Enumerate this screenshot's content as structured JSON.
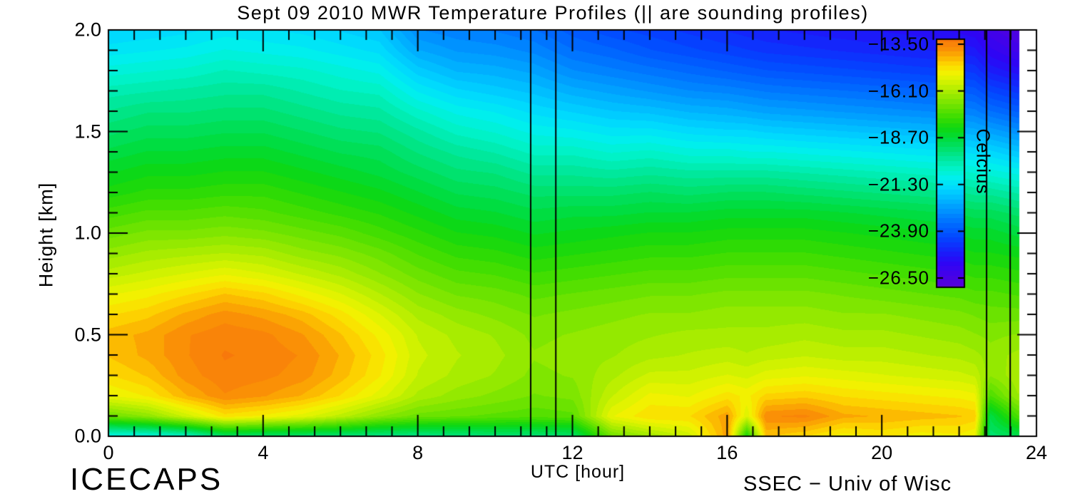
{
  "title": "Sept 09 2010 MWR Temperature Profiles (|| are sounding profiles)",
  "axes": {
    "xlabel": "UTC [hour]",
    "ylabel": "Height [km]",
    "x_tick_labels": [
      "0",
      "4",
      "8",
      "12",
      "16",
      "20",
      "24"
    ],
    "x_tick_values": [
      0,
      4,
      8,
      12,
      16,
      20,
      24
    ],
    "y_tick_labels": [
      "0.0",
      "0.5",
      "1.0",
      "1.5",
      "2.0"
    ],
    "y_tick_values": [
      0,
      0.5,
      1,
      1.5,
      2
    ]
  },
  "colorbar": {
    "title": "Celcius",
    "tick_labels": [
      "−13.50",
      "−16.10",
      "−18.70",
      "−21.30",
      "−23.90",
      "−26.50"
    ],
    "tick_values": [
      -13.5,
      -16.1,
      -18.7,
      -21.3,
      -23.9,
      -26.5
    ],
    "min": -26.5,
    "max": -13.5
  },
  "footer": {
    "left": "ICECAPS",
    "right": "SSEC − Univ of Wisc"
  },
  "chart_data": {
    "type": "heatmap",
    "title": "Sept 09 2010 MWR Temperature Profiles (|| are sounding profiles)",
    "xlabel": "UTC [hour]",
    "ylabel": "Height [km]",
    "value_label": "Temperature (Celcius)",
    "xlim": [
      0,
      24
    ],
    "ylim": [
      0,
      2
    ],
    "grid": false,
    "value_range": [
      -26.5,
      -13.5
    ],
    "level_step_c": 0.25,
    "data_end_hour": 23.55,
    "sounding_lines_utc": [
      10.92,
      11.57,
      22.71,
      23.32
    ],
    "x_hours": [
      0,
      1,
      2,
      3,
      4,
      5,
      6,
      7,
      8,
      9,
      10,
      11,
      12,
      13,
      14,
      15,
      16,
      16.5,
      17,
      18,
      19,
      20,
      21,
      22,
      22.4,
      22.8,
      23.5
    ],
    "heights_km": [
      0,
      0.1,
      0.2,
      0.3,
      0.4,
      0.5,
      0.6,
      0.7,
      0.8,
      0.9,
      1.0,
      1.1,
      1.2,
      1.3,
      1.4,
      1.5,
      1.6,
      1.7,
      1.8,
      1.9,
      2.0
    ],
    "temps_c": [
      [
        -20.8,
        -17.0,
        -15.4,
        -14.9,
        -14.6,
        -14.5,
        -14.9,
        -15.4,
        -16.0,
        -16.5,
        -17.0,
        -17.5,
        -18.0,
        -18.4,
        -18.8,
        -19.2,
        -19.6,
        -20.0,
        -20.5,
        -21.0,
        -21.4
      ],
      [
        -20.7,
        -16.6,
        -15.1,
        -14.6,
        -14.3,
        -14.3,
        -14.7,
        -15.2,
        -15.8,
        -16.3,
        -16.8,
        -17.3,
        -17.8,
        -18.2,
        -18.6,
        -19.0,
        -19.4,
        -19.9,
        -20.4,
        -20.9,
        -21.3
      ],
      [
        -20.4,
        -15.8,
        -14.4,
        -14.0,
        -13.9,
        -13.9,
        -14.3,
        -14.9,
        -15.6,
        -16.2,
        -16.8,
        -17.3,
        -17.8,
        -18.2,
        -18.6,
        -19.0,
        -19.4,
        -19.8,
        -20.3,
        -20.8,
        -21.2
      ],
      [
        -19.3,
        -15.0,
        -13.9,
        -13.7,
        -13.6,
        -13.7,
        -14.0,
        -14.6,
        -15.4,
        -16.1,
        -16.7,
        -17.2,
        -17.7,
        -18.1,
        -18.5,
        -18.9,
        -19.3,
        -19.7,
        -20.1,
        -20.6,
        -21.0
      ],
      [
        -19.4,
        -15.2,
        -14.1,
        -13.8,
        -13.7,
        -13.8,
        -14.2,
        -14.8,
        -15.6,
        -16.2,
        -16.8,
        -17.3,
        -17.7,
        -18.1,
        -18.5,
        -18.9,
        -19.3,
        -19.7,
        -20.2,
        -20.7,
        -21.1
      ],
      [
        -19.4,
        -15.5,
        -14.4,
        -14.0,
        -13.9,
        -14.1,
        -14.5,
        -15.2,
        -15.9,
        -16.5,
        -17.0,
        -17.5,
        -17.9,
        -18.3,
        -18.7,
        -19.1,
        -19.5,
        -19.9,
        -20.3,
        -20.8,
        -21.2
      ],
      [
        -19.5,
        -16.0,
        -14.9,
        -14.5,
        -14.4,
        -14.6,
        -15.0,
        -15.6,
        -16.2,
        -16.7,
        -17.2,
        -17.7,
        -18.1,
        -18.5,
        -18.9,
        -19.3,
        -19.7,
        -20.1,
        -20.5,
        -21.0,
        -21.4
      ],
      [
        -19.6,
        -16.6,
        -15.5,
        -15.1,
        -15.0,
        -15.2,
        -15.6,
        -16.1,
        -16.6,
        -17.0,
        -17.5,
        -17.9,
        -18.3,
        -18.7,
        -19.0,
        -19.4,
        -19.8,
        -20.2,
        -20.7,
        -21.2,
        -21.6
      ],
      [
        -19.6,
        -17.0,
        -16.2,
        -15.9,
        -15.8,
        -15.9,
        -16.2,
        -16.6,
        -17.0,
        -17.4,
        -17.8,
        -18.2,
        -18.6,
        -19.0,
        -19.4,
        -19.8,
        -20.3,
        -20.9,
        -21.5,
        -22.1,
        -22.6
      ],
      [
        -19.5,
        -17.1,
        -16.5,
        -16.2,
        -16.1,
        -16.2,
        -16.5,
        -16.9,
        -17.3,
        -17.7,
        -18.1,
        -18.5,
        -18.9,
        -19.3,
        -19.7,
        -20.2,
        -20.7,
        -21.3,
        -21.9,
        -22.4,
        -22.8
      ],
      [
        -19.4,
        -17.2,
        -16.7,
        -16.4,
        -16.3,
        -16.4,
        -16.7,
        -17.0,
        -17.4,
        -17.8,
        -18.2,
        -18.6,
        -19.0,
        -19.4,
        -19.9,
        -20.4,
        -20.9,
        -21.5,
        -22.0,
        -22.5,
        -22.9
      ],
      [
        -19.4,
        -17.3,
        -16.9,
        -16.7,
        -16.6,
        -16.7,
        -16.9,
        -17.2,
        -17.6,
        -18.0,
        -18.4,
        -18.8,
        -19.2,
        -19.7,
        -20.2,
        -20.7,
        -21.2,
        -21.7,
        -22.2,
        -22.7,
        -23.1
      ],
      [
        -19.3,
        -17.2,
        -16.8,
        -16.6,
        -16.5,
        -16.6,
        -16.8,
        -17.1,
        -17.5,
        -17.9,
        -18.3,
        -18.7,
        -19.2,
        -19.7,
        -20.2,
        -20.8,
        -21.4,
        -22.0,
        -22.6,
        -23.1,
        -23.5
      ],
      [
        -17.0,
        -15.4,
        -15.9,
        -16.2,
        -16.4,
        -16.5,
        -16.7,
        -17.0,
        -17.4,
        -17.8,
        -18.2,
        -18.7,
        -19.2,
        -19.8,
        -20.4,
        -21.0,
        -21.6,
        -22.2,
        -22.8,
        -23.3,
        -23.8
      ],
      [
        -16.4,
        -14.9,
        -15.3,
        -15.8,
        -16.2,
        -16.4,
        -16.6,
        -16.9,
        -17.3,
        -17.7,
        -18.1,
        -18.6,
        -19.1,
        -19.7,
        -20.3,
        -21.0,
        -21.7,
        -22.4,
        -23.0,
        -23.6,
        -24.0
      ],
      [
        -15.8,
        -14.9,
        -15.4,
        -15.8,
        -16.1,
        -16.3,
        -16.6,
        -16.9,
        -17.3,
        -17.7,
        -18.1,
        -18.6,
        -19.2,
        -19.8,
        -20.5,
        -21.2,
        -21.9,
        -22.6,
        -23.2,
        -23.8,
        -24.2
      ],
      [
        -14.2,
        -14.2,
        -15.0,
        -15.6,
        -16.0,
        -16.3,
        -16.5,
        -16.8,
        -17.2,
        -17.6,
        -18.0,
        -18.5,
        -19.1,
        -19.8,
        -20.5,
        -21.3,
        -22.0,
        -22.7,
        -23.4,
        -24.0,
        -24.4
      ],
      [
        -18.2,
        -15.6,
        -15.2,
        -15.7,
        -16.1,
        -16.3,
        -16.5,
        -16.8,
        -17.2,
        -17.6,
        -18.0,
        -18.5,
        -19.1,
        -19.8,
        -20.6,
        -21.3,
        -22.1,
        -22.8,
        -23.5,
        -24.1,
        -24.5
      ],
      [
        -14.6,
        -13.9,
        -14.8,
        -15.5,
        -16.0,
        -16.3,
        -16.5,
        -16.8,
        -17.2,
        -17.6,
        -18.0,
        -18.5,
        -19.1,
        -19.8,
        -20.6,
        -21.4,
        -22.2,
        -22.9,
        -23.6,
        -24.2,
        -24.6
      ],
      [
        -14.9,
        -13.8,
        -14.7,
        -15.4,
        -15.9,
        -16.2,
        -16.5,
        -16.8,
        -17.2,
        -17.6,
        -18.0,
        -18.5,
        -19.2,
        -19.9,
        -20.7,
        -21.5,
        -22.3,
        -23.0,
        -23.7,
        -24.3,
        -24.7
      ],
      [
        -15.3,
        -14.3,
        -14.9,
        -15.5,
        -16.0,
        -16.3,
        -16.6,
        -16.9,
        -17.3,
        -17.7,
        -18.1,
        -18.6,
        -19.3,
        -20.0,
        -20.8,
        -21.6,
        -22.4,
        -23.1,
        -23.8,
        -24.4,
        -24.8
      ],
      [
        -15.1,
        -14.4,
        -15.0,
        -15.6,
        -16.0,
        -16.3,
        -16.6,
        -17.0,
        -17.4,
        -17.8,
        -18.2,
        -18.7,
        -19.4,
        -20.1,
        -20.9,
        -21.7,
        -22.5,
        -23.2,
        -23.9,
        -24.5,
        -24.9
      ],
      [
        -15.3,
        -14.5,
        -15.1,
        -15.7,
        -16.1,
        -16.4,
        -16.7,
        -17.1,
        -17.5,
        -17.9,
        -18.3,
        -18.8,
        -19.5,
        -20.2,
        -21.0,
        -21.8,
        -22.6,
        -23.3,
        -24.0,
        -24.6,
        -25.0
      ],
      [
        -15.2,
        -14.6,
        -15.2,
        -15.8,
        -16.2,
        -16.5,
        -16.8,
        -17.2,
        -17.6,
        -18.0,
        -18.4,
        -18.9,
        -19.6,
        -20.3,
        -21.1,
        -21.9,
        -22.7,
        -23.4,
        -24.1,
        -24.7,
        -25.2
      ],
      [
        -15.4,
        -14.7,
        -15.3,
        -15.9,
        -16.3,
        -16.6,
        -16.9,
        -17.3,
        -17.7,
        -18.1,
        -18.5,
        -19.0,
        -19.7,
        -20.4,
        -21.2,
        -22.0,
        -22.8,
        -23.5,
        -24.2,
        -24.8,
        -25.3
      ],
      [
        -19.3,
        -18.8,
        -17.4,
        -16.6,
        -16.5,
        -16.7,
        -17.0,
        -17.3,
        -17.7,
        -18.1,
        -18.5,
        -19.0,
        -19.7,
        -20.5,
        -21.3,
        -22.2,
        -23.1,
        -23.9,
        -24.7,
        -25.3,
        -25.8
      ],
      [
        -19.0,
        -17.4,
        -16.4,
        -16.2,
        -16.3,
        -16.6,
        -17.0,
        -17.4,
        -17.8,
        -18.2,
        -18.7,
        -19.2,
        -19.9,
        -20.7,
        -21.6,
        -22.5,
        -23.4,
        -24.2,
        -25.0,
        -25.7,
        -26.2
      ]
    ],
    "colormap_stops": [
      [
        0.0,
        "#5802D8"
      ],
      [
        0.05,
        "#4502E8"
      ],
      [
        0.1,
        "#2D05F5"
      ],
      [
        0.15,
        "#1523FB"
      ],
      [
        0.2,
        "#0345FF"
      ],
      [
        0.25,
        "#0067FF"
      ],
      [
        0.3,
        "#008CFF"
      ],
      [
        0.35,
        "#00B2FF"
      ],
      [
        0.4,
        "#00D8FF"
      ],
      [
        0.44,
        "#00EFEF"
      ],
      [
        0.48,
        "#00F2C8"
      ],
      [
        0.52,
        "#00E89B"
      ],
      [
        0.56,
        "#00E26B"
      ],
      [
        0.6,
        "#00DC3C"
      ],
      [
        0.64,
        "#0ED711"
      ],
      [
        0.68,
        "#35DC02"
      ],
      [
        0.72,
        "#5FE100"
      ],
      [
        0.76,
        "#8AE800"
      ],
      [
        0.8,
        "#B4EE00"
      ],
      [
        0.84,
        "#DDF400"
      ],
      [
        0.87,
        "#F6F000"
      ],
      [
        0.9,
        "#FDD500"
      ],
      [
        0.93,
        "#FCB201"
      ],
      [
        0.96,
        "#FA9106"
      ],
      [
        1.0,
        "#F8780B"
      ]
    ]
  }
}
